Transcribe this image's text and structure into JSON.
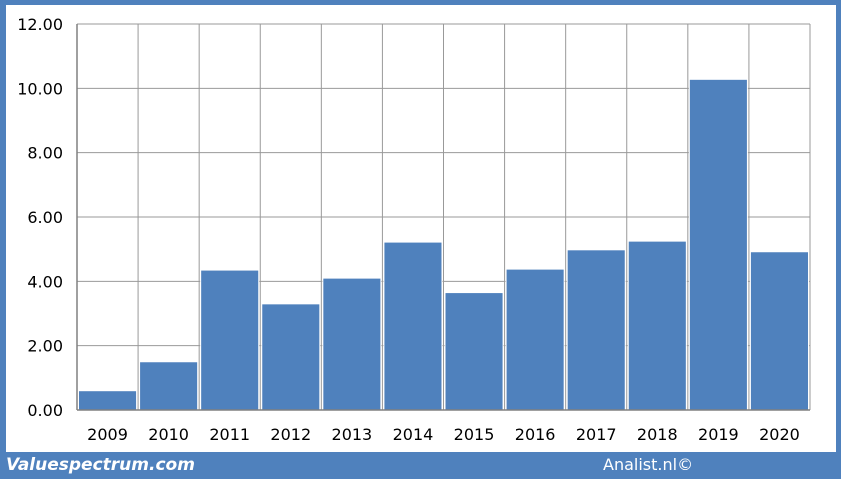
{
  "chart_data": {
    "type": "bar",
    "categories": [
      "2009",
      "2010",
      "2011",
      "2012",
      "2013",
      "2014",
      "2015",
      "2016",
      "2017",
      "2018",
      "2019",
      "2020"
    ],
    "values": [
      0.6,
      1.5,
      4.35,
      3.3,
      4.1,
      5.22,
      3.65,
      4.38,
      4.98,
      5.25,
      10.28,
      4.92
    ],
    "ylim": [
      0,
      12
    ],
    "yticks": [
      "0.00",
      "2.00",
      "4.00",
      "6.00",
      "8.00",
      "10.00",
      "12.00"
    ],
    "grid": true,
    "bar_color": "#4f81bd",
    "grid_color": "#999999"
  },
  "footer": {
    "left": "Valuespectrum.com",
    "right": "Analist.nl©"
  },
  "colors": {
    "frame": "#4f81bd",
    "background": "#ffffff"
  }
}
